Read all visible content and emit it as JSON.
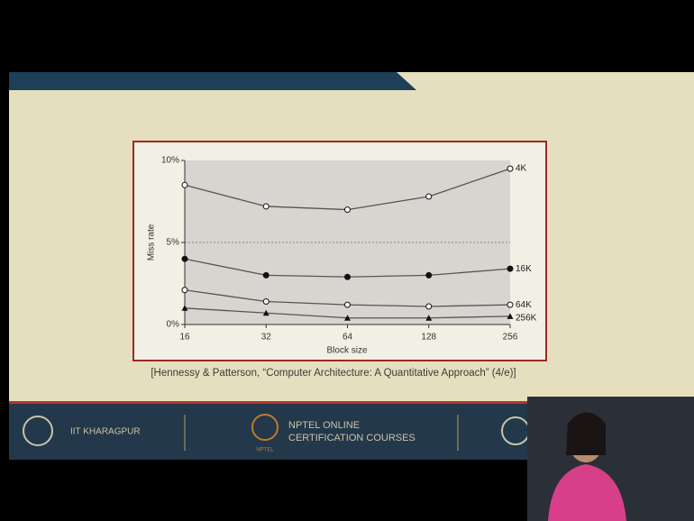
{
  "chart_data": {
    "type": "line",
    "x_label": "Block size",
    "y_label": "Miss rate",
    "categories": [
      "16",
      "32",
      "64",
      "128",
      "256"
    ],
    "series": [
      {
        "name": "4K",
        "color": "#555555",
        "marker": "open-circle",
        "values": [
          8.5,
          7.2,
          7.0,
          7.8,
          9.5
        ]
      },
      {
        "name": "16K",
        "color": "#555555",
        "marker": "filled-circle",
        "values": [
          4.0,
          3.0,
          2.9,
          3.0,
          3.4
        ]
      },
      {
        "name": "64K",
        "color": "#555555",
        "marker": "open-circle",
        "values": [
          2.1,
          1.4,
          1.2,
          1.1,
          1.2
        ]
      },
      {
        "name": "256K",
        "color": "#555555",
        "marker": "filled-triangle",
        "values": [
          1.0,
          0.7,
          0.4,
          0.4,
          0.5
        ]
      }
    ],
    "ylim": [
      0,
      10
    ],
    "yticks": [
      {
        "value": 0,
        "label": "0%"
      },
      {
        "value": 5,
        "label": "5%"
      },
      {
        "value": 10,
        "label": "10%"
      }
    ],
    "grid": true
  },
  "citation": "[Hennessy & Patterson, “Computer Architecture: A Quantitative Approach” (4/e)]",
  "footer": {
    "left": "IIT KHARAGPUR",
    "center": [
      "NPTEL ONLINE",
      "CERTIFICATION COURSES"
    ],
    "logo_caption": "NPTEL"
  }
}
